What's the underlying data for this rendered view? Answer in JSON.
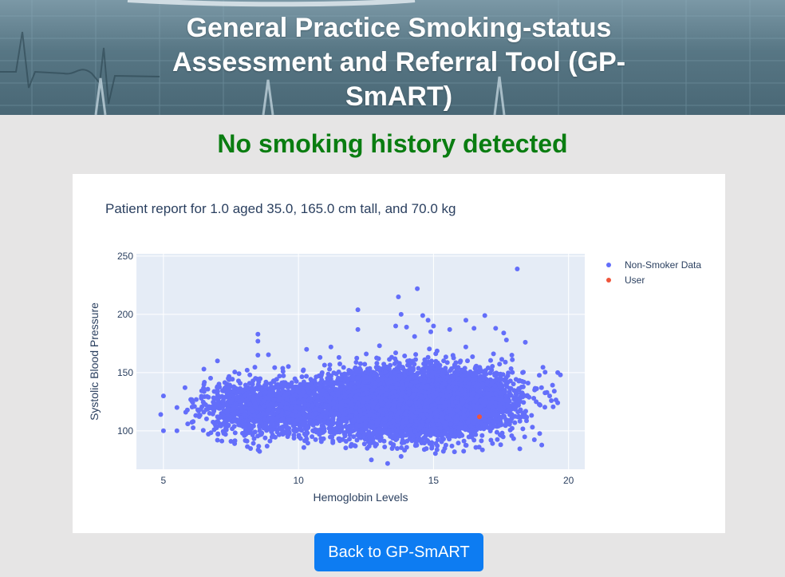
{
  "header": {
    "title": "General Practice Smoking-status Assessment and Referral Tool (GP-SmART)"
  },
  "result": {
    "status": "No smoking history detected",
    "status_color": "#0a7d11"
  },
  "report": {
    "title": "Patient report for 1.0 aged 35.0, 165.0 cm tall, and 70.0 kg"
  },
  "chart_data": {
    "type": "scatter",
    "title": "Patient report for 1.0 aged 35.0, 165.0 cm tall, and 70.0 kg",
    "xlabel": "Hemoglobin Levels",
    "ylabel": "Systolic Blood Pressure",
    "xlim": [
      4,
      20.6
    ],
    "ylim": [
      67,
      252
    ],
    "xticks": [
      5,
      10,
      15,
      20
    ],
    "yticks": [
      100,
      150,
      200,
      250
    ],
    "grid": true,
    "legend_position": "top-right",
    "series": [
      {
        "name": "Non-Smoker Data",
        "color": "#636efa",
        "points": [
          [
            4.9,
            114
          ],
          [
            5.0,
            130
          ],
          [
            5.0,
            100
          ],
          [
            5.5,
            120
          ],
          [
            5.5,
            100
          ],
          [
            5.8,
            137
          ],
          [
            5.9,
            106
          ],
          [
            6.1,
            108
          ],
          [
            6.3,
            113
          ],
          [
            6.3,
            117
          ],
          [
            6.4,
            128
          ],
          [
            6.5,
            153
          ],
          [
            6.7,
            120
          ],
          [
            6.9,
            106
          ],
          [
            7.0,
            112
          ],
          [
            7.0,
            128
          ],
          [
            7.0,
            138
          ],
          [
            7.0,
            160
          ],
          [
            7.0,
            92
          ],
          [
            7.2,
            121
          ],
          [
            7.3,
            97
          ],
          [
            7.4,
            145
          ],
          [
            7.4,
            113
          ],
          [
            7.5,
            91
          ],
          [
            7.6,
            121
          ],
          [
            7.6,
            134
          ],
          [
            7.8,
            109
          ],
          [
            7.9,
            117
          ],
          [
            8.0,
            130
          ],
          [
            8.0,
            96
          ],
          [
            8.1,
            152
          ],
          [
            8.2,
            123
          ],
          [
            8.3,
            140
          ],
          [
            8.5,
            183
          ],
          [
            8.5,
            177
          ],
          [
            8.5,
            165
          ],
          [
            8.7,
            115
          ],
          [
            8.8,
            133
          ],
          [
            9.0,
            107
          ],
          [
            9.3,
            147
          ],
          [
            9.6,
            132
          ],
          [
            10.3,
            170
          ],
          [
            10.8,
            163
          ],
          [
            11.2,
            172
          ],
          [
            11.5,
            163
          ],
          [
            12.2,
            187
          ],
          [
            12.2,
            204
          ],
          [
            13.0,
            173
          ],
          [
            13.6,
            190
          ],
          [
            13.8,
            200
          ],
          [
            14.0,
            189
          ],
          [
            14.3,
            181
          ],
          [
            14.6,
            199
          ],
          [
            14.8,
            195
          ],
          [
            14.9,
            185
          ],
          [
            15.0,
            190
          ],
          [
            15.6,
            187
          ],
          [
            16.2,
            195
          ],
          [
            16.5,
            188
          ],
          [
            16.9,
            199
          ],
          [
            17.3,
            188
          ],
          [
            17.6,
            184
          ],
          [
            17.7,
            178
          ],
          [
            17.9,
            165
          ],
          [
            18.1,
            128
          ],
          [
            18.3,
            150
          ],
          [
            18.4,
            176
          ],
          [
            18.5,
            141
          ],
          [
            18.8,
            125
          ],
          [
            19.0,
            137
          ],
          [
            19.2,
            133
          ],
          [
            19.3,
            130
          ],
          [
            19.6,
            150
          ],
          [
            19.7,
            148
          ],
          [
            13.3,
            72
          ],
          [
            12.7,
            75
          ],
          [
            13.8,
            78
          ],
          [
            13.7,
            215
          ],
          [
            14.4,
            222
          ],
          [
            18.1,
            239
          ],
          [
            15.7,
            147
          ],
          [
            16.8,
            96
          ],
          [
            17.1,
            103
          ],
          [
            16.5,
            92
          ],
          [
            10.5,
            95
          ],
          [
            9.6,
            95
          ]
        ],
        "cloud": [
          {
            "cx": 13.8,
            "cy": 124,
            "sx": 1.45,
            "sy": 14,
            "n": 5200
          },
          {
            "cx": 9.4,
            "cy": 120,
            "sx": 1.2,
            "sy": 12,
            "n": 1100
          },
          {
            "cx": 16.3,
            "cy": 125,
            "sx": 1.0,
            "sy": 13,
            "n": 1500
          },
          {
            "cx": 7.6,
            "cy": 120,
            "sx": 0.8,
            "sy": 12,
            "n": 240
          }
        ]
      },
      {
        "name": "User",
        "color": "#ef553b",
        "points": [
          [
            16.7,
            112
          ]
        ]
      }
    ]
  },
  "footer": {
    "back_label": "Back to GP-SmART",
    "back_color": "#0d7cf2"
  }
}
